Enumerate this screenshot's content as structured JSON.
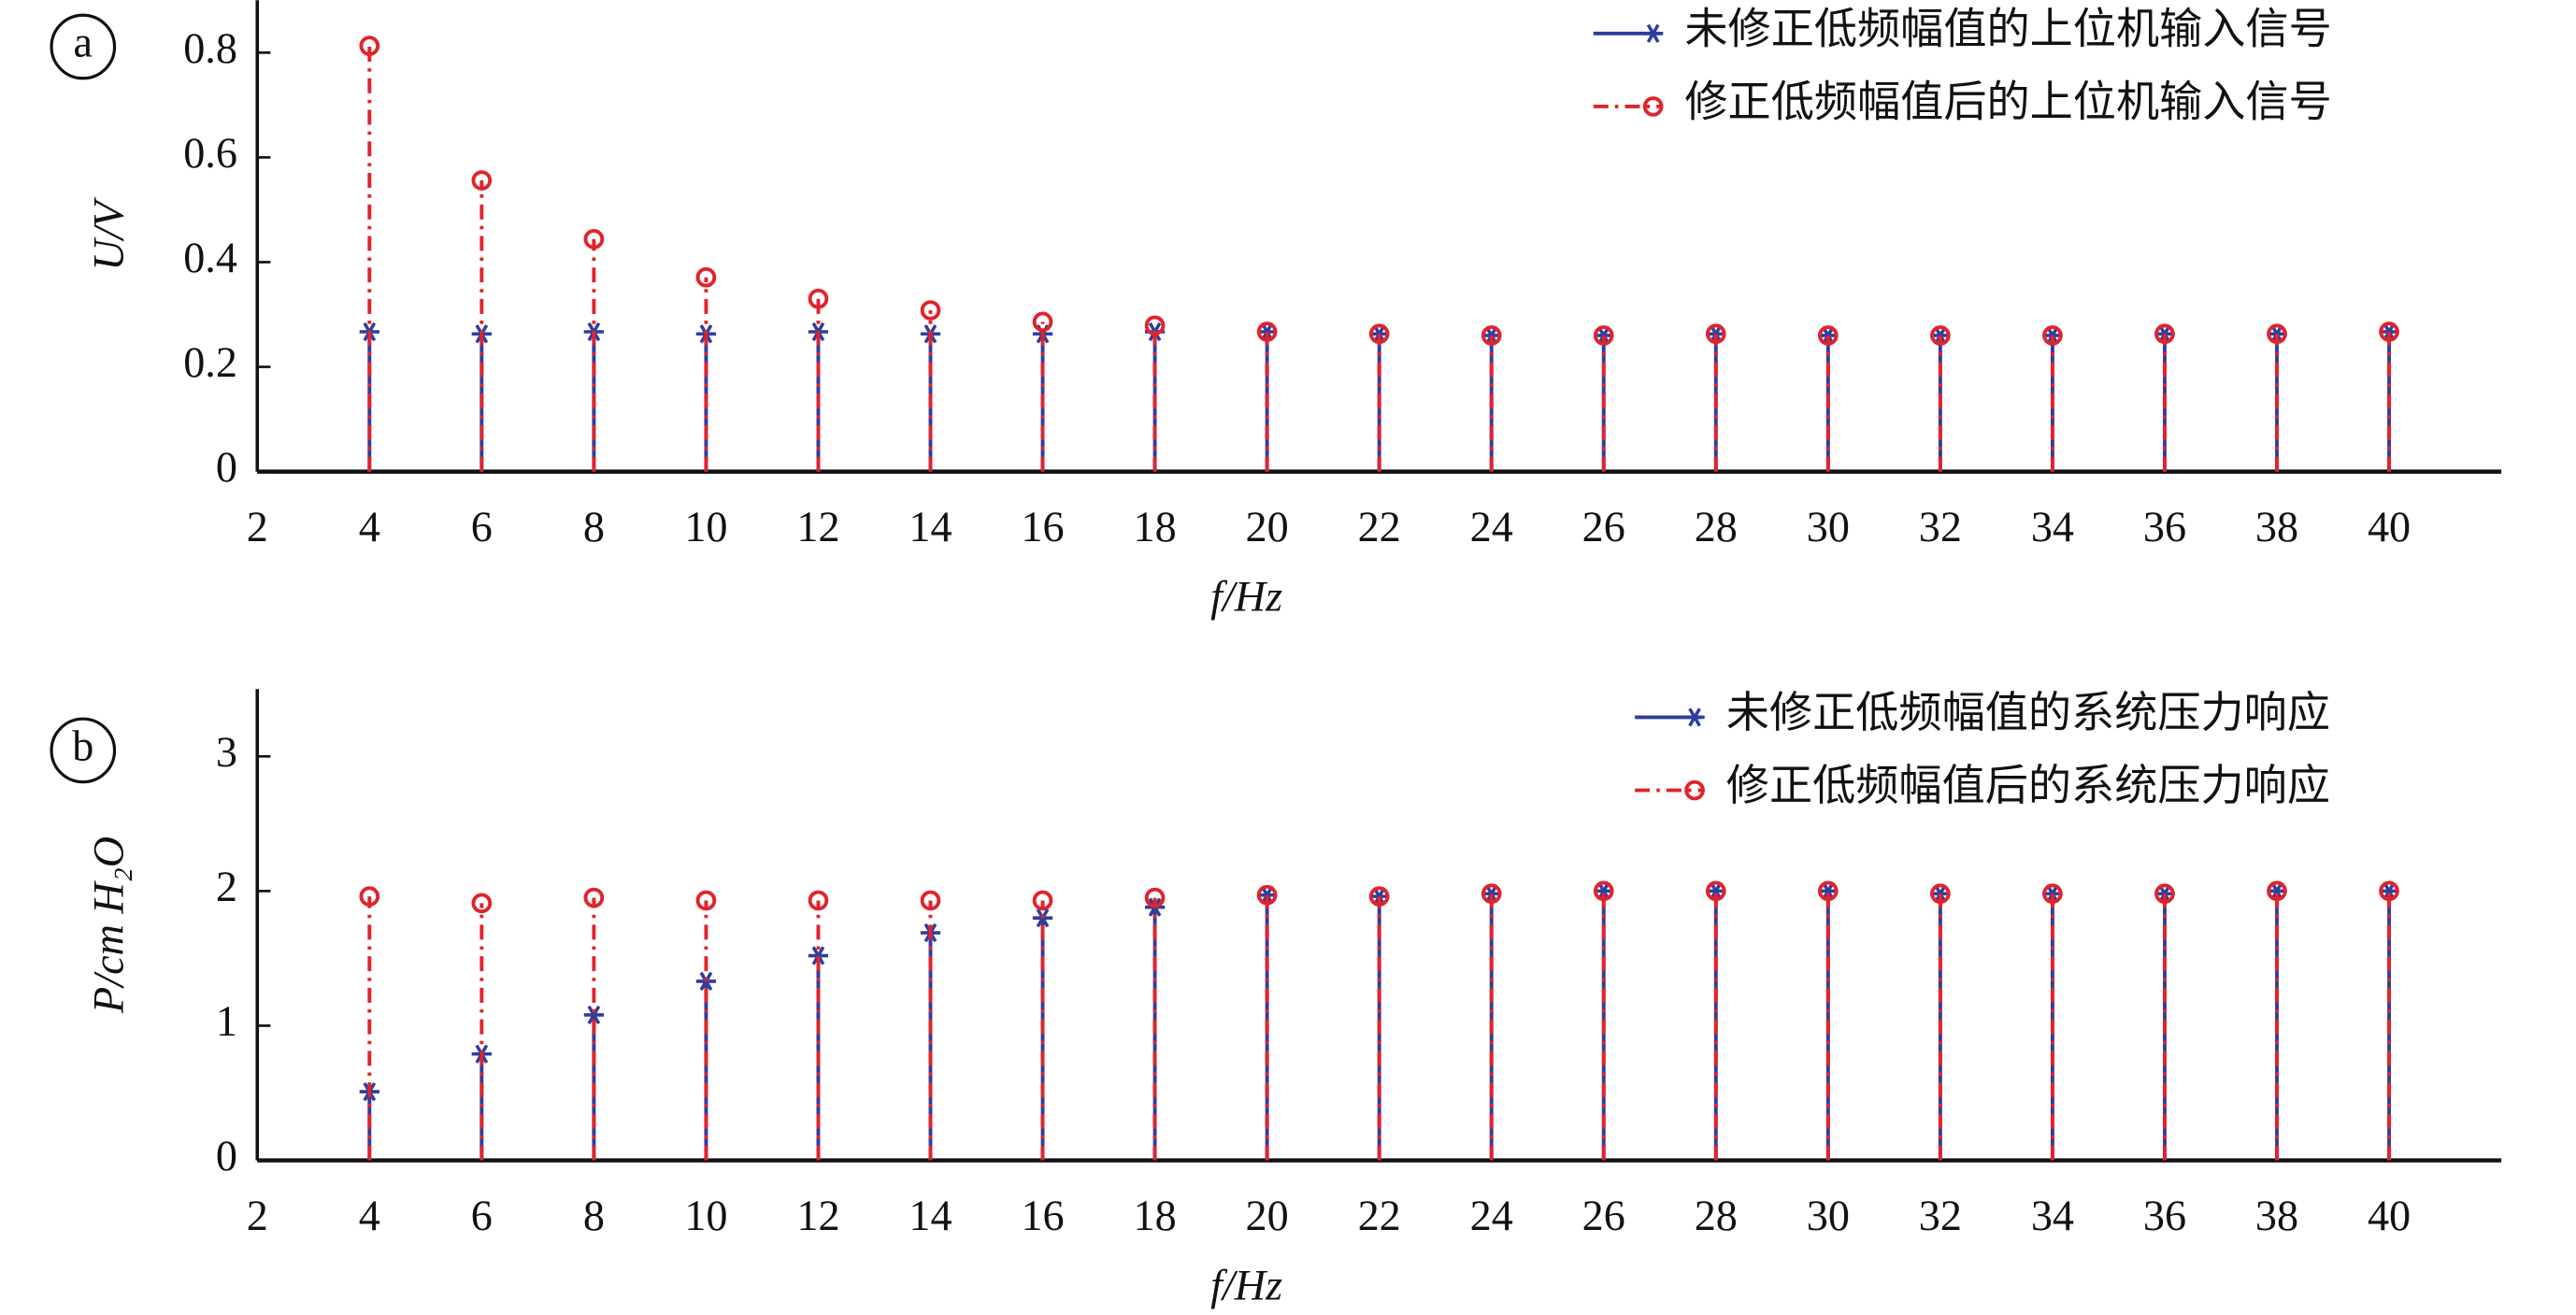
{
  "charts": [
    {
      "type": "stem",
      "panel": "a",
      "y_label": "U/V",
      "x_label": "f/Hz",
      "x": [
        4,
        6,
        8,
        10,
        12,
        14,
        16,
        18,
        20,
        22,
        24,
        26,
        28,
        30,
        32,
        34,
        36,
        38,
        40
      ],
      "xlim": [
        2,
        42
      ],
      "xticks": [
        2,
        4,
        6,
        8,
        10,
        12,
        14,
        16,
        18,
        20,
        22,
        24,
        26,
        28,
        30,
        32,
        34,
        36,
        38,
        40
      ],
      "ylim": [
        0,
        0.9
      ],
      "yticks": [
        0,
        0.2,
        0.4,
        0.6,
        0.8
      ],
      "legend": "upper right",
      "series": [
        {
          "name": "未修正低频幅值的上位机输入信号",
          "color": "#2e3e9e",
          "line": "solid",
          "marker": "asterisk",
          "values": [
            0.267,
            0.263,
            0.267,
            0.263,
            0.267,
            0.263,
            0.263,
            0.267,
            0.267,
            0.263,
            0.26,
            0.26,
            0.263,
            0.26,
            0.26,
            0.26,
            0.263,
            0.263,
            0.267
          ]
        },
        {
          "name": "修正低频幅值后的上位机输入信号",
          "color": "#e0242c",
          "line": "dashdot",
          "marker": "circle",
          "values": [
            0.813,
            0.556,
            0.444,
            0.371,
            0.33,
            0.308,
            0.286,
            0.279,
            0.267,
            0.263,
            0.26,
            0.26,
            0.263,
            0.26,
            0.26,
            0.26,
            0.263,
            0.263,
            0.267
          ]
        }
      ]
    },
    {
      "type": "stem",
      "panel": "b",
      "y_label": "P/cm H₂O",
      "x_label": "f/Hz",
      "x": [
        4,
        6,
        8,
        10,
        12,
        14,
        16,
        18,
        20,
        22,
        24,
        26,
        28,
        30,
        32,
        34,
        36,
        38,
        40
      ],
      "xlim": [
        2,
        42
      ],
      "xticks": [
        2,
        4,
        6,
        8,
        10,
        12,
        14,
        16,
        18,
        20,
        22,
        24,
        26,
        28,
        30,
        32,
        34,
        36,
        38,
        40
      ],
      "ylim": [
        0,
        3.5
      ],
      "yticks": [
        0,
        1,
        2,
        3
      ],
      "legend": "upper right",
      "series": [
        {
          "name": "未修正低频幅值的系统压力响应",
          "color": "#2e3e9e",
          "line": "solid",
          "marker": "asterisk",
          "values": [
            0.51,
            0.79,
            1.08,
            1.33,
            1.52,
            1.69,
            1.8,
            1.88,
            1.97,
            1.96,
            1.98,
            2.0,
            2.0,
            2.0,
            1.98,
            1.98,
            1.98,
            2.0,
            2.0
          ]
        },
        {
          "name": "修正低频幅值后的系统压力响应",
          "color": "#e0242c",
          "line": "dashdot",
          "marker": "circle",
          "values": [
            1.96,
            1.91,
            1.95,
            1.93,
            1.93,
            1.93,
            1.93,
            1.95,
            1.97,
            1.96,
            1.98,
            2.0,
            2.0,
            2.0,
            1.98,
            1.98,
            1.98,
            2.0,
            2.0
          ]
        }
      ]
    }
  ]
}
